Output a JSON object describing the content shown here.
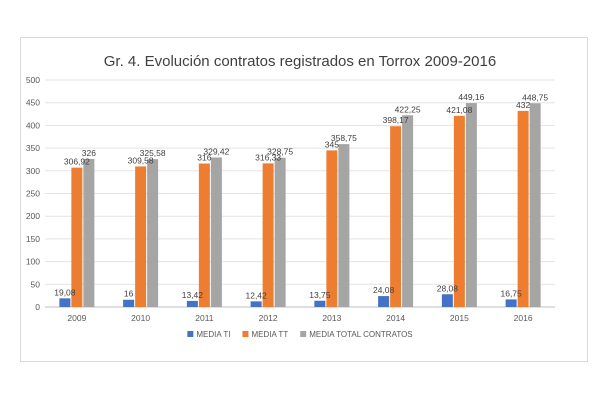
{
  "chart_data": {
    "type": "bar",
    "title": "Gr. 4. Evolución contratos registrados en Torrox 2009-2016",
    "xlabel": "",
    "ylabel": "",
    "categories": [
      "2009",
      "2010",
      "2011",
      "2012",
      "2013",
      "2014",
      "2015",
      "2016"
    ],
    "ylim": [
      0,
      500
    ],
    "yticks": [
      0,
      50,
      100,
      150,
      200,
      250,
      300,
      350,
      400,
      450,
      500
    ],
    "grid": true,
    "legend_position": "bottom",
    "series": [
      {
        "name": "MEDIA TI",
        "color": "#4472c4",
        "values": [
          19.08,
          16,
          13.42,
          12.42,
          13.75,
          24.08,
          28.08,
          16.75
        ],
        "labels": [
          "19,08",
          "16",
          "13,42",
          "12,42",
          "13,75",
          "24,08",
          "28,08",
          "16,75"
        ]
      },
      {
        "name": "MEDIA TT",
        "color": "#ed7d31",
        "values": [
          306.92,
          309.58,
          316,
          316.33,
          345,
          398.17,
          421.08,
          432
        ],
        "labels": [
          "306,92",
          "309,58",
          "316",
          "316,33",
          "345",
          "398,17",
          "421,08",
          "432"
        ]
      },
      {
        "name": "MEDIA TOTAL CONTRATOS",
        "color": "#a5a5a5",
        "values": [
          326,
          325.58,
          329.42,
          328.75,
          358.75,
          422.25,
          449.16,
          448.75
        ],
        "labels": [
          "326",
          "325,58",
          "329,42",
          "328,75",
          "358,75",
          "422,25",
          "449,16",
          "448,75"
        ]
      }
    ]
  }
}
